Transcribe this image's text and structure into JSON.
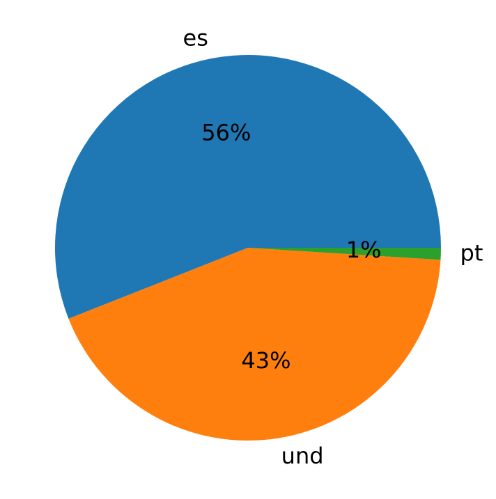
{
  "chart_data": {
    "type": "pie",
    "categories": [
      "es",
      "und",
      "pt"
    ],
    "values": [
      56,
      43,
      1
    ],
    "value_labels": [
      "56%",
      "43%",
      "1%"
    ],
    "colors": [
      "#1f77b4",
      "#ff7f0e",
      "#2ca02c"
    ]
  }
}
